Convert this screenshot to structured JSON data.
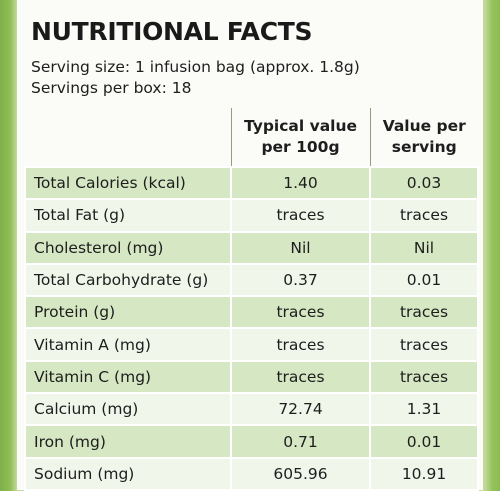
{
  "title": "NUTRITIONAL FACTS",
  "serving_size": "Serving size: 1 infusion bag (approx. 1.8g)",
  "servings_per_box": "Servings per box: 18",
  "table": {
    "headers": {
      "nutrient": "",
      "typical": "Typical value per 100g",
      "serving": "Value per serving"
    },
    "rows": [
      {
        "nutrient": "Total Calories (kcal)",
        "typical": "1.40",
        "serving": "0.03"
      },
      {
        "nutrient": "Total Fat (g)",
        "typical": "traces",
        "serving": "traces"
      },
      {
        "nutrient": "Cholesterol (mg)",
        "typical": "Nil",
        "serving": "Nil"
      },
      {
        "nutrient": "Total Carbohydrate (g)",
        "typical": "0.37",
        "serving": "0.01"
      },
      {
        "nutrient": "Protein (g)",
        "typical": "traces",
        "serving": "traces"
      },
      {
        "nutrient": "Vitamin A (mg)",
        "typical": "traces",
        "serving": "traces"
      },
      {
        "nutrient": "Vitamin C (mg)",
        "typical": "traces",
        "serving": "traces"
      },
      {
        "nutrient": "Calcium (mg)",
        "typical": "72.74",
        "serving": "1.31"
      },
      {
        "nutrient": "Iron (mg)",
        "typical": "0.71",
        "serving": "0.01"
      },
      {
        "nutrient": "Sodium (mg)",
        "typical": "605.96",
        "serving": "10.91"
      }
    ]
  },
  "colors": {
    "background_green": "#8fbe55",
    "row_green": "#d6e7c3",
    "row_light": "#f1f6ea",
    "panel": "#fbfbf8"
  }
}
